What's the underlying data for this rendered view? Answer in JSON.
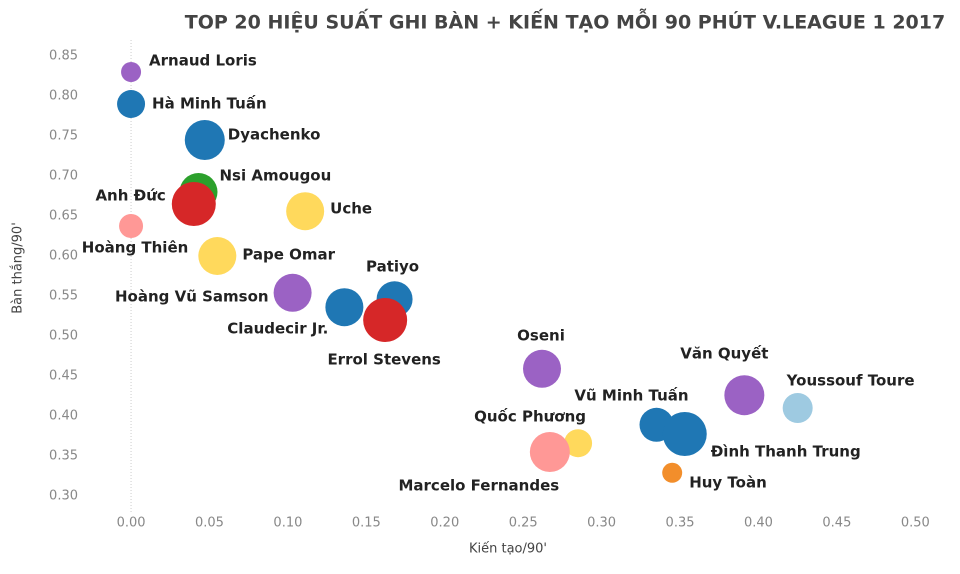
{
  "chart_data": {
    "type": "bubble",
    "title": "TOP 20 HIỆU SUẤT GHI BÀN + KIẾN TẠO MỖI 90 PHÚT V.LEAGUE 1 2017",
    "x_label": "Kiến tạo/90'",
    "y_label": "Bàn thắng/90'",
    "labels": [
      "Arnaud Loris",
      "Hà Minh Tuấn",
      "Dyachenko",
      "Nsi Amougou",
      "Anh Đức",
      "Hoàng Thiên",
      "Uche",
      "Pape Omar",
      "Hoàng Vũ Samson",
      "Patiyo",
      "Claudecir Jr.",
      "Errol Stevens",
      "Oseni",
      "Văn Quyết",
      "Youssouf Toure",
      "Vũ Minh Tuấn",
      "Đình Thanh Trung",
      "Quốc Phương",
      "Marcelo Fernandes",
      "Huy Toàn"
    ],
    "x": [
      0,
      0,
      0.047,
      0.043,
      0.04,
      0,
      0.111,
      0.055,
      0.103,
      0.168,
      0.136,
      0.162,
      0.262,
      0.391,
      0.425,
      0.335,
      0.353,
      0.285,
      0.267,
      0.345
    ],
    "y": [
      0.83,
      0.79,
      0.745,
      0.68,
      0.665,
      0.6375,
      0.656,
      0.6,
      0.554,
      0.546,
      0.536,
      0.52,
      0.459,
      0.426,
      0.41,
      0.389,
      0.3775,
      0.366,
      0.355,
      0.329
    ],
    "sizes": [
      100,
      196,
      400,
      361,
      484,
      144,
      361,
      361,
      361,
      324,
      361,
      484,
      361,
      400,
      225,
      289,
      484,
      196,
      400,
      100
    ],
    "colors": [
      "#9b62c4",
      "#1f77b4",
      "#1f77b4",
      "#2ca02c",
      "#d62728",
      "#ff9896",
      "#ffd95c",
      "#ffd95c",
      "#9b62c4",
      "#1f77b4",
      "#1f77b4",
      "#d62728",
      "#9b62c4",
      "#9b62c4",
      "#9ecae1",
      "#1f77b4",
      "#1f77b4",
      "#ffd95c",
      "#ff9896",
      "#f28e2b"
    ],
    "xlim": [
      -0.03,
      0.51
    ],
    "ylim": [
      0.28,
      0.87
    ],
    "xticks": [
      {
        "value": 0,
        "label": "0.00"
      },
      {
        "value": 0.05,
        "label": "0.05"
      },
      {
        "value": 0.1,
        "label": "0.10"
      },
      {
        "value": 0.15,
        "label": "0.15"
      },
      {
        "value": 0.2,
        "label": "0.20"
      },
      {
        "value": 0.25,
        "label": "0.25"
      },
      {
        "value": 0.3,
        "label": "0.30"
      },
      {
        "value": 0.35,
        "label": "0.35"
      },
      {
        "value": 0.4,
        "label": "0.40"
      },
      {
        "value": 0.45,
        "label": "0.45"
      },
      {
        "value": 0.5,
        "label": "0.50"
      }
    ],
    "yticks": [
      {
        "value": 0.3,
        "label": "0.30"
      },
      {
        "value": 0.35,
        "label": "0.35"
      },
      {
        "value": 0.4,
        "label": "0.40"
      },
      {
        "value": 0.45,
        "label": "0.45"
      },
      {
        "value": 0.5,
        "label": "0.50"
      },
      {
        "value": 0.55,
        "label": "0.55"
      },
      {
        "value": 0.6,
        "label": "0.60"
      },
      {
        "value": 0.65,
        "label": "0.65"
      },
      {
        "value": 0.7,
        "label": "0.70"
      },
      {
        "value": 0.75,
        "label": "0.75"
      },
      {
        "value": 0.8,
        "label": "0.80"
      },
      {
        "value": 0.85,
        "label": "0.85"
      }
    ],
    "grid": false
  }
}
